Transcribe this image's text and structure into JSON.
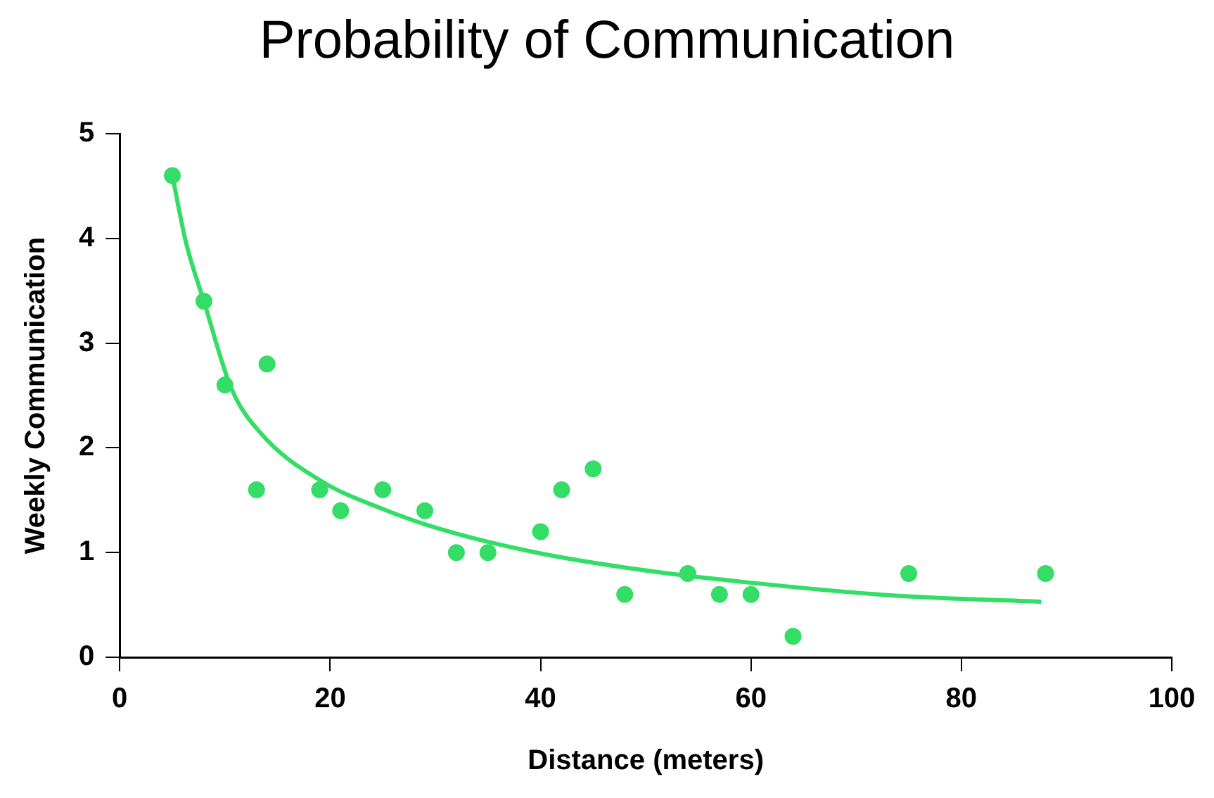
{
  "chart_data": {
    "type": "scatter",
    "title": "Probability of Communication",
    "xlabel": "Distance (meters)",
    "ylabel": "Weekly Communication",
    "xlim": [
      0,
      100
    ],
    "xticks": [
      0,
      20,
      40,
      60,
      80,
      100
    ],
    "ylim": [
      0,
      5
    ],
    "yticks": [
      0,
      1,
      2,
      3,
      4,
      5
    ],
    "grid": false,
    "legend": false,
    "series": [
      {
        "type": "scatter",
        "marker": "circle",
        "color": "#33dd66",
        "x": [
          5,
          8,
          10,
          13,
          14,
          19,
          21,
          25,
          29,
          32,
          35,
          40,
          42,
          45,
          48,
          54,
          57,
          60,
          64,
          75,
          88
        ],
        "values": [
          4.6,
          3.4,
          2.6,
          1.6,
          2.8,
          1.6,
          1.4,
          1.6,
          1.4,
          1.0,
          1.0,
          1.2,
          1.6,
          1.8,
          0.6,
          0.8,
          0.6,
          0.6,
          0.2,
          0.8,
          0.8
        ]
      },
      {
        "type": "line",
        "marker": "none",
        "color": "#33dd66",
        "x": [
          5,
          6.3,
          8,
          10.6,
          13.4,
          19.2,
          24.9,
          30.6,
          39.6,
          49.2,
          59.2,
          73.5,
          87.6
        ],
        "values": [
          4.6,
          3.96,
          3.4,
          2.57,
          2.14,
          1.68,
          1.42,
          1.22,
          1.0,
          0.84,
          0.72,
          0.59,
          0.53
        ]
      }
    ]
  }
}
